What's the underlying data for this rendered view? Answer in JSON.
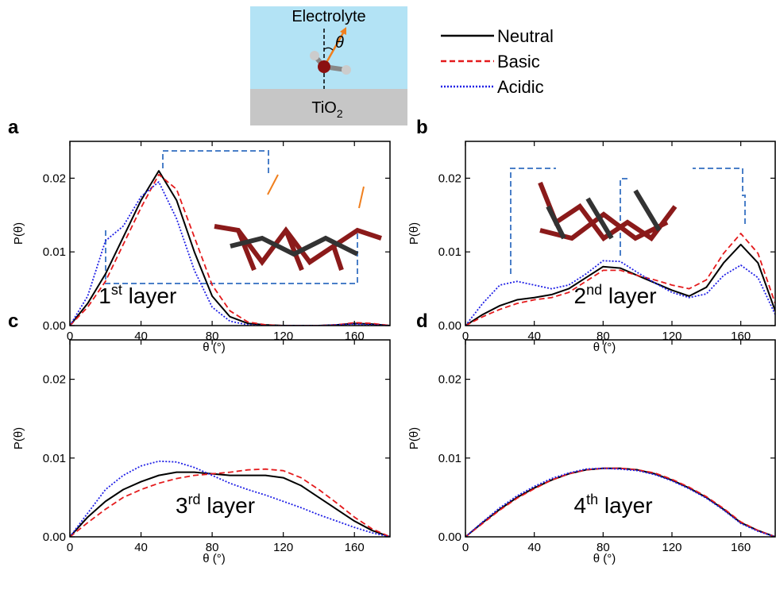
{
  "schematic": {
    "top": "Electrolyte",
    "angle": "θ",
    "bottom": {
      "text": "TiO",
      "sub": "2"
    }
  },
  "legend": [
    {
      "name": "Neutral",
      "color": "#000000",
      "dash": "solid"
    },
    {
      "name": "Basic",
      "color": "#e41a1c",
      "dash": "dashed"
    },
    {
      "name": "Acidic",
      "color": "#1f1fe6",
      "dash": "dotted"
    }
  ],
  "chart_data": [
    {
      "type": "line",
      "panel": "a",
      "layer": {
        "number": "1",
        "suffix": "st",
        "text": " layer"
      },
      "xlabel": "θ (°)",
      "ylabel": "P(θ)",
      "x": [
        0,
        10,
        20,
        30,
        40,
        50,
        60,
        70,
        80,
        90,
        100,
        110,
        120,
        130,
        140,
        150,
        160,
        170,
        180
      ],
      "series": [
        {
          "values": [
            0,
            0.003,
            0.007,
            0.012,
            0.017,
            0.021,
            0.017,
            0.01,
            0.004,
            0.0012,
            0.0003,
            0.0001,
            0,
            0,
            0,
            0.0001,
            0.0003,
            0.0002,
            0
          ]
        },
        {
          "values": [
            0,
            0.0025,
            0.006,
            0.011,
            0.016,
            0.0205,
            0.0185,
            0.012,
            0.0055,
            0.002,
            0.0005,
            0.0001,
            0,
            0,
            0,
            0.0001,
            0.0004,
            0.0003,
            0
          ]
        },
        {
          "values": [
            0,
            0.004,
            0.0115,
            0.0135,
            0.0175,
            0.0195,
            0.0145,
            0.0075,
            0.0025,
            0.0006,
            0.0001,
            0,
            0,
            0,
            0,
            0.0001,
            0.0002,
            0.0001,
            0
          ]
        }
      ],
      "xlim": [
        0,
        180
      ],
      "ylim": [
        0,
        0.025
      ],
      "xticks": [
        0,
        40,
        80,
        120,
        160
      ],
      "yticks": [
        {
          "value": 0,
          "label": "0.00"
        },
        {
          "value": 0.01,
          "label": "0.01"
        },
        {
          "value": 0.02,
          "label": "0.02"
        }
      ]
    },
    {
      "type": "line",
      "panel": "b",
      "layer": {
        "number": "2",
        "suffix": "nd",
        "text": " layer"
      },
      "xlabel": "θ (°)",
      "ylabel": "P(θ)",
      "x": [
        0,
        10,
        20,
        30,
        40,
        50,
        60,
        70,
        80,
        90,
        100,
        110,
        120,
        130,
        140,
        150,
        160,
        170,
        180
      ],
      "series": [
        {
          "values": [
            0,
            0.0015,
            0.0027,
            0.0035,
            0.0038,
            0.0042,
            0.005,
            0.0065,
            0.008,
            0.0078,
            0.0068,
            0.0058,
            0.0048,
            0.004,
            0.0052,
            0.0085,
            0.011,
            0.0085,
            0.002
          ]
        },
        {
          "values": [
            0,
            0.0012,
            0.0022,
            0.003,
            0.0035,
            0.0038,
            0.0045,
            0.006,
            0.0075,
            0.0075,
            0.0068,
            0.0062,
            0.0055,
            0.005,
            0.0062,
            0.0098,
            0.0125,
            0.0098,
            0.003
          ]
        },
        {
          "values": [
            0,
            0.003,
            0.0055,
            0.006,
            0.0055,
            0.005,
            0.0055,
            0.007,
            0.0088,
            0.0087,
            0.0072,
            0.0058,
            0.0045,
            0.0038,
            0.0043,
            0.0068,
            0.0082,
            0.0065,
            0.0015
          ]
        }
      ],
      "xlim": [
        0,
        180
      ],
      "ylim": [
        0,
        0.025
      ],
      "xticks": [
        0,
        40,
        80,
        120,
        160
      ],
      "yticks": [
        {
          "value": 0,
          "label": "0.00"
        },
        {
          "value": 0.01,
          "label": "0.01"
        },
        {
          "value": 0.02,
          "label": "0.02"
        }
      ]
    },
    {
      "type": "line",
      "panel": "c",
      "layer": {
        "number": "3",
        "suffix": "rd",
        "text": " layer"
      },
      "xlabel": "θ (°)",
      "ylabel": "P(θ)",
      "x": [
        0,
        10,
        20,
        30,
        40,
        50,
        60,
        70,
        80,
        90,
        100,
        110,
        120,
        130,
        140,
        150,
        160,
        170,
        180
      ],
      "series": [
        {
          "values": [
            0,
            0.0025,
            0.0045,
            0.006,
            0.007,
            0.0078,
            0.0082,
            0.0082,
            0.008,
            0.0078,
            0.0078,
            0.0078,
            0.0075,
            0.0065,
            0.005,
            0.0035,
            0.002,
            0.0008,
            0
          ]
        },
        {
          "values": [
            0,
            0.0018,
            0.0035,
            0.005,
            0.006,
            0.0068,
            0.0074,
            0.0078,
            0.008,
            0.0082,
            0.0085,
            0.0086,
            0.0084,
            0.0075,
            0.006,
            0.0043,
            0.0025,
            0.001,
            0
          ]
        },
        {
          "values": [
            0,
            0.003,
            0.006,
            0.0078,
            0.009,
            0.0096,
            0.0095,
            0.0088,
            0.0078,
            0.0068,
            0.006,
            0.0053,
            0.0045,
            0.0037,
            0.0028,
            0.002,
            0.0012,
            0.0005,
            0
          ]
        }
      ],
      "xlim": [
        0,
        180
      ],
      "ylim": [
        0,
        0.025
      ],
      "xticks": [
        0,
        40,
        80,
        120,
        160
      ],
      "yticks": [
        {
          "value": 0,
          "label": "0.00"
        },
        {
          "value": 0.01,
          "label": "0.01"
        },
        {
          "value": 0.02,
          "label": "0.02"
        }
      ]
    },
    {
      "type": "line",
      "panel": "d",
      "layer": {
        "number": "4",
        "suffix": "th",
        "text": " layer"
      },
      "xlabel": "θ (°)",
      "ylabel": "P(θ)",
      "x": [
        0,
        10,
        20,
        30,
        40,
        50,
        60,
        70,
        80,
        90,
        100,
        110,
        120,
        130,
        140,
        150,
        160,
        170,
        180
      ],
      "series": [
        {
          "values": [
            0,
            0.0018,
            0.0035,
            0.005,
            0.0062,
            0.0072,
            0.008,
            0.0085,
            0.0087,
            0.0087,
            0.0085,
            0.008,
            0.0072,
            0.0062,
            0.005,
            0.0035,
            0.0018,
            0.0008,
            0
          ]
        },
        {
          "values": [
            0,
            0.0017,
            0.0034,
            0.0049,
            0.0061,
            0.0072,
            0.008,
            0.0085,
            0.0087,
            0.0087,
            0.0085,
            0.0081,
            0.0073,
            0.0063,
            0.0051,
            0.0036,
            0.0019,
            0.0008,
            0
          ]
        },
        {
          "values": [
            0,
            0.0019,
            0.0037,
            0.0052,
            0.0064,
            0.0074,
            0.0081,
            0.0086,
            0.0087,
            0.0086,
            0.0084,
            0.0079,
            0.0071,
            0.0061,
            0.0049,
            0.0034,
            0.0017,
            0.0007,
            0
          ]
        }
      ],
      "xlim": [
        0,
        180
      ],
      "ylim": [
        0,
        0.025
      ],
      "xticks": [
        0,
        40,
        80,
        120,
        160
      ],
      "yticks": [
        {
          "value": 0,
          "label": "0.00"
        },
        {
          "value": 0.01,
          "label": "0.01"
        },
        {
          "value": 0.02,
          "label": "0.02"
        }
      ]
    }
  ]
}
